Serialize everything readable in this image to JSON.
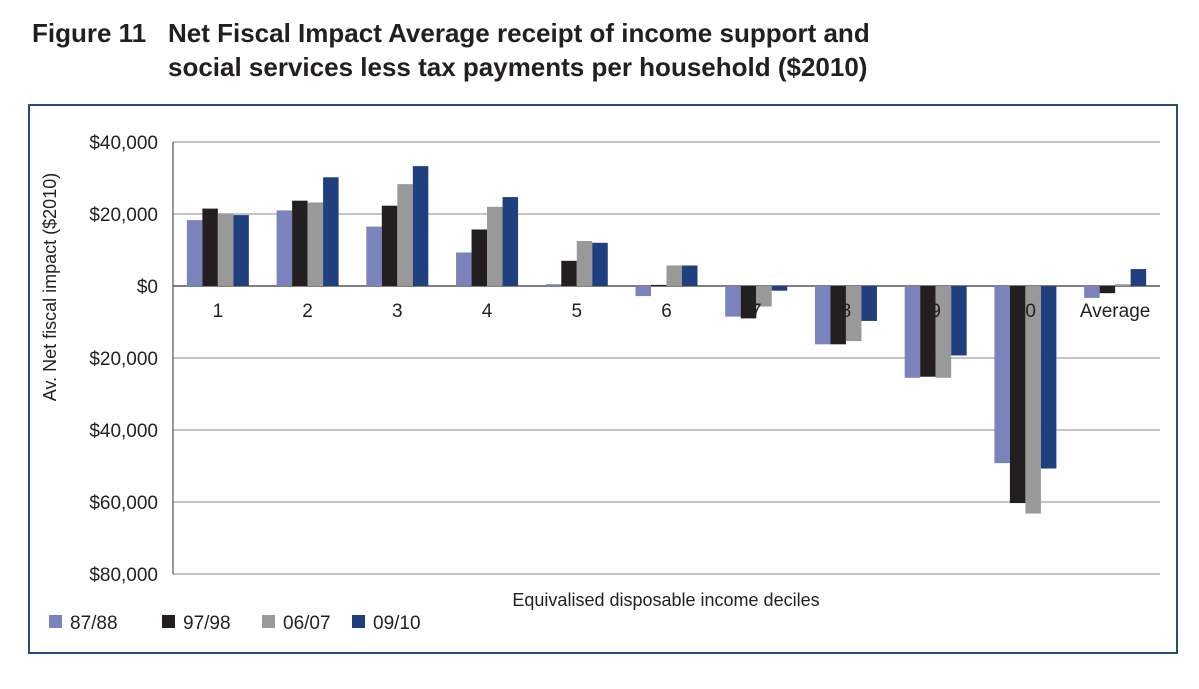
{
  "figure": {
    "number": "Figure 11",
    "title_line1": "Net Fiscal Impact Average receipt of income support and",
    "title_line2": "social services less tax payments per household ($2010)"
  },
  "chart_data": {
    "type": "bar",
    "xlabel": "Equivalised disposable income deciles",
    "ylabel": "Av. Net fiscal impact ($2010)",
    "ylim": [
      -80000,
      40000
    ],
    "yticks": [
      40000,
      20000,
      0,
      -20000,
      -40000,
      -60000,
      -80000
    ],
    "ytick_labels": [
      "$40,000",
      "$20,000",
      "$0",
      "$20,000",
      "$40,000",
      "$60,000",
      "$80,000"
    ],
    "grid": true,
    "legend_position": "bottom-left",
    "categories": [
      "1",
      "2",
      "3",
      "4",
      "5",
      "6",
      "7",
      "8",
      "9",
      "10",
      "Average"
    ],
    "series": [
      {
        "name": "87/88",
        "color": "#7b83bd",
        "values": [
          18300,
          21000,
          16500,
          9300,
          500,
          -2800,
          -8500,
          -16200,
          -25500,
          -49200,
          -3300
        ]
      },
      {
        "name": "97/98",
        "color": "#231f20",
        "values": [
          21500,
          23700,
          22300,
          15700,
          7000,
          300,
          -9000,
          -16200,
          -25200,
          -60300,
          -2000
        ]
      },
      {
        "name": "06/07",
        "color": "#999999",
        "values": [
          20200,
          23200,
          28300,
          22000,
          12500,
          5700,
          -5700,
          -15300,
          -25500,
          -63200,
          500
        ]
      },
      {
        "name": "09/10",
        "color": "#1f3f7f",
        "values": [
          19700,
          30200,
          33300,
          24700,
          12000,
          5700,
          -1300,
          -9700,
          -19300,
          -50700,
          4700
        ]
      }
    ]
  }
}
